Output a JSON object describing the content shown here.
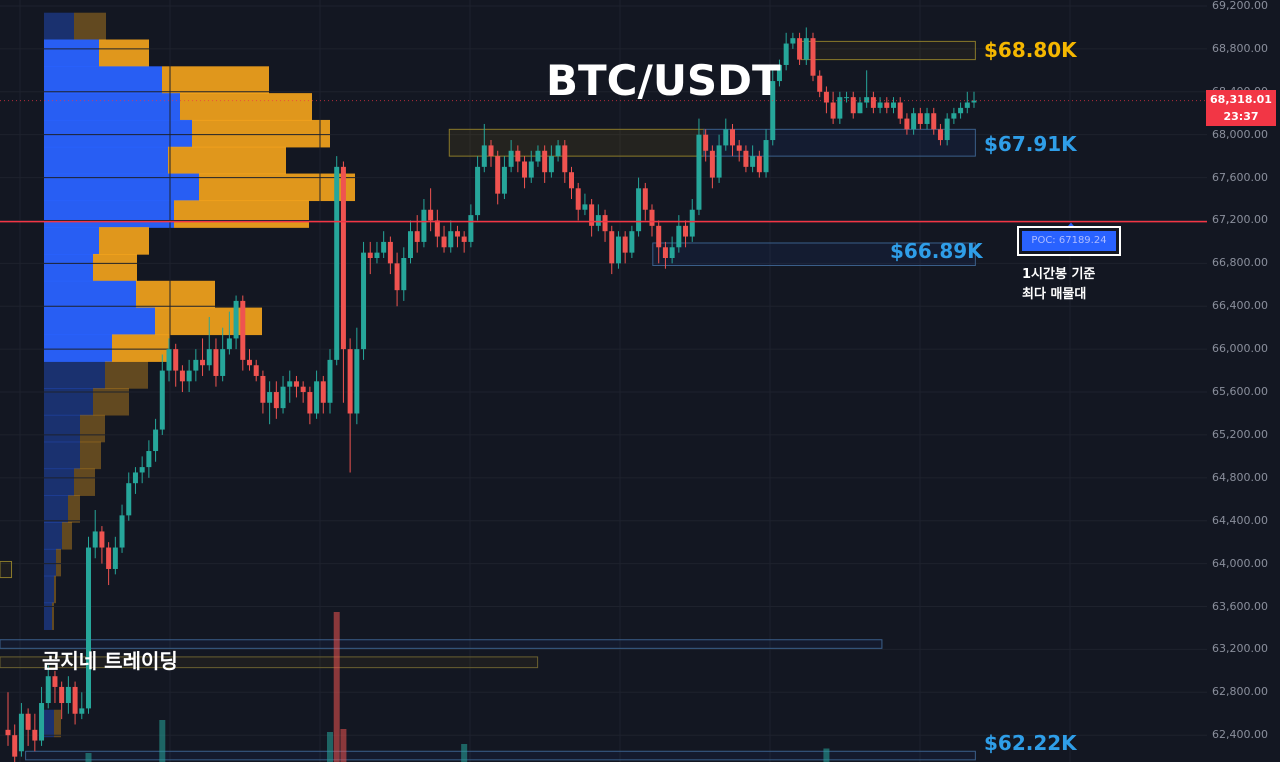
{
  "chart_data": {
    "type": "candlestick",
    "title": "BTC/USDT",
    "watermark": "곰지네 트레이딩",
    "current_price": 68318.01,
    "current_price_label": "68,318.01",
    "countdown": "23:37",
    "ylim": [
      62150,
      69200
    ],
    "y_ticks": [
      62400,
      62800,
      63200,
      63600,
      64000,
      64400,
      64800,
      65200,
      65600,
      66000,
      66400,
      66800,
      67200,
      67600,
      68000,
      68400,
      68800,
      69200
    ],
    "y_tick_labels": [
      "62,400.00",
      "62,800.00",
      "63,200.00",
      "63,600.00",
      "64,000.00",
      "64,400.00",
      "64,800.00",
      "65,200.00",
      "65,600.00",
      "66,000.00",
      "66,400.00",
      "66,800.00",
      "67,200.00",
      "67,600.00",
      "68,000.00",
      "68,400.00",
      "68,800.00",
      "69,200.00"
    ],
    "levels": [
      {
        "label": "$68.80K",
        "value": 68800,
        "color": "#f5b700"
      },
      {
        "label": "$67.91K",
        "value": 67910,
        "color": "#2f9ee8"
      },
      {
        "label": "$66.89K",
        "value": 66890,
        "color": "#2f9ee8"
      },
      {
        "label": "$62.22K",
        "value": 62220,
        "color": "#2f9ee8"
      }
    ],
    "poc": {
      "label": "POC: 67189.24",
      "value": 67189.24,
      "note_line1": "1시간봉 기준",
      "note_line2": "최다 매물대"
    },
    "colors": {
      "up": "#26a69a",
      "down": "#ef5350",
      "poc_line": "#f23645",
      "profile_up": "#2962ff",
      "profile_down": "#f7a51c"
    },
    "grid": true,
    "candles": [
      [
        62450,
        62400,
        62800,
        62300
      ],
      [
        62400,
        62200,
        62500,
        62150
      ],
      [
        62250,
        62600,
        62700,
        62200
      ],
      [
        62600,
        62450,
        62650,
        62300
      ],
      [
        62450,
        62350,
        62600,
        62250
      ],
      [
        62350,
        62700,
        62850,
        62300
      ],
      [
        62700,
        62950,
        63050,
        62650
      ],
      [
        62950,
        62850,
        63000,
        62700
      ],
      [
        62850,
        62700,
        62900,
        62550
      ],
      [
        62700,
        62850,
        62950,
        62600
      ],
      [
        62850,
        62600,
        62900,
        62500
      ],
      [
        62600,
        62650,
        62800,
        62550
      ],
      [
        62650,
        64150,
        64250,
        62600
      ],
      [
        64150,
        64300,
        64500,
        64050
      ],
      [
        64300,
        64150,
        64350,
        64000
      ],
      [
        64150,
        63950,
        64200,
        63800
      ],
      [
        63950,
        64150,
        64250,
        63900
      ],
      [
        64150,
        64450,
        64550,
        64100
      ],
      [
        64450,
        64750,
        64850,
        64400
      ],
      [
        64750,
        64850,
        64900,
        64650
      ],
      [
        64850,
        64900,
        65000,
        64750
      ],
      [
        64900,
        65050,
        65150,
        64800
      ],
      [
        65050,
        65250,
        65350,
        64950
      ],
      [
        65250,
        65800,
        65950,
        65200
      ],
      [
        65800,
        66000,
        66100,
        65700
      ],
      [
        66000,
        65800,
        66050,
        65650
      ],
      [
        65800,
        65700,
        65850,
        65600
      ],
      [
        65700,
        65800,
        65900,
        65600
      ],
      [
        65800,
        65900,
        66000,
        65700
      ],
      [
        65900,
        65850,
        66100,
        65750
      ],
      [
        65850,
        66000,
        66300,
        65800
      ],
      [
        66000,
        65750,
        66100,
        65650
      ],
      [
        65750,
        66000,
        66200,
        65700
      ],
      [
        66000,
        66100,
        66350,
        65950
      ],
      [
        66100,
        66450,
        66500,
        66000
      ],
      [
        66450,
        65900,
        66500,
        65800
      ],
      [
        65900,
        65850,
        66000,
        65800
      ],
      [
        65850,
        65750,
        65900,
        65700
      ],
      [
        65750,
        65500,
        65800,
        65400
      ],
      [
        65500,
        65600,
        65700,
        65300
      ],
      [
        65600,
        65450,
        65700,
        65350
      ],
      [
        65450,
        65650,
        65750,
        65400
      ],
      [
        65650,
        65700,
        65800,
        65500
      ],
      [
        65700,
        65650,
        65750,
        65550
      ],
      [
        65650,
        65600,
        65700,
        65500
      ],
      [
        65600,
        65400,
        65650,
        65300
      ],
      [
        65400,
        65700,
        65800,
        65350
      ],
      [
        65700,
        65500,
        65750,
        65400
      ],
      [
        65500,
        65900,
        66000,
        65400
      ],
      [
        65900,
        67700,
        67800,
        65850
      ],
      [
        67700,
        66000,
        67750,
        65500
      ],
      [
        66000,
        65400,
        66100,
        64850
      ],
      [
        65400,
        66000,
        66200,
        65300
      ],
      [
        66000,
        66900,
        67000,
        65900
      ],
      [
        66900,
        66850,
        67000,
        66700
      ],
      [
        66850,
        66900,
        67000,
        66800
      ],
      [
        66900,
        67000,
        67100,
        66850
      ],
      [
        67000,
        66800,
        67050,
        66700
      ],
      [
        66800,
        66550,
        66900,
        66400
      ],
      [
        66550,
        66850,
        66950,
        66450
      ],
      [
        66850,
        67100,
        67200,
        66800
      ],
      [
        67100,
        67000,
        67250,
        66900
      ],
      [
        67000,
        67300,
        67400,
        66950
      ],
      [
        67300,
        67200,
        67500,
        67100
      ],
      [
        67200,
        67050,
        67300,
        66950
      ],
      [
        67050,
        66950,
        67150,
        66900
      ],
      [
        66950,
        67100,
        67200,
        66900
      ],
      [
        67100,
        67050,
        67150,
        66950
      ],
      [
        67050,
        67000,
        67100,
        66900
      ],
      [
        67000,
        67250,
        67350,
        66950
      ],
      [
        67250,
        67700,
        67800,
        67200
      ],
      [
        67700,
        67900,
        68100,
        67650
      ],
      [
        67900,
        67800,
        67950,
        67700
      ],
      [
        67800,
        67450,
        67850,
        67350
      ],
      [
        67450,
        67700,
        67800,
        67400
      ],
      [
        67700,
        67850,
        67950,
        67650
      ],
      [
        67850,
        67750,
        67900,
        67650
      ],
      [
        67750,
        67600,
        67800,
        67500
      ],
      [
        67600,
        67750,
        67850,
        67550
      ],
      [
        67750,
        67850,
        67900,
        67700
      ],
      [
        67850,
        67650,
        67900,
        67550
      ],
      [
        67650,
        67800,
        67900,
        67600
      ],
      [
        67800,
        67900,
        67950,
        67750
      ],
      [
        67900,
        67650,
        67950,
        67550
      ],
      [
        67650,
        67500,
        67700,
        67400
      ],
      [
        67500,
        67300,
        67550,
        67200
      ],
      [
        67300,
        67350,
        67450,
        67250
      ],
      [
        67350,
        67150,
        67400,
        67050
      ],
      [
        67150,
        67250,
        67350,
        67100
      ],
      [
        67250,
        67100,
        67300,
        67000
      ],
      [
        67100,
        66800,
        67150,
        66700
      ],
      [
        66800,
        67050,
        67100,
        66750
      ],
      [
        67050,
        66900,
        67100,
        66800
      ],
      [
        66900,
        67100,
        67150,
        66850
      ],
      [
        67100,
        67500,
        67600,
        67050
      ],
      [
        67500,
        67300,
        67550,
        67200
      ],
      [
        67300,
        67150,
        67350,
        67050
      ],
      [
        67150,
        66950,
        67200,
        66800
      ],
      [
        66950,
        66850,
        67000,
        66750
      ],
      [
        66850,
        66950,
        67050,
        66800
      ],
      [
        66950,
        67150,
        67250,
        66900
      ],
      [
        67150,
        67050,
        67200,
        66950
      ],
      [
        67050,
        67300,
        67400,
        67000
      ],
      [
        67300,
        68000,
        68150,
        67250
      ],
      [
        68000,
        67850,
        68050,
        67750
      ],
      [
        67850,
        67600,
        67900,
        67500
      ],
      [
        67600,
        67900,
        68000,
        67550
      ],
      [
        67900,
        68050,
        68150,
        67850
      ],
      [
        68050,
        67900,
        68100,
        67800
      ],
      [
        67900,
        67850,
        67950,
        67750
      ],
      [
        67850,
        67700,
        67900,
        67650
      ],
      [
        67700,
        67800,
        67900,
        67650
      ],
      [
        67800,
        67650,
        67850,
        67600
      ],
      [
        67650,
        67950,
        68050,
        67600
      ],
      [
        67950,
        68500,
        68600,
        67900
      ],
      [
        68500,
        68650,
        68700,
        68450
      ],
      [
        68650,
        68850,
        68950,
        68600
      ],
      [
        68850,
        68900,
        68950,
        68800
      ],
      [
        68900,
        68700,
        68950,
        68650
      ],
      [
        68700,
        68900,
        69000,
        68650
      ],
      [
        68900,
        68550,
        68950,
        68500
      ],
      [
        68550,
        68400,
        68600,
        68350
      ],
      [
        68400,
        68300,
        68450,
        68200
      ],
      [
        68300,
        68150,
        68400,
        68100
      ],
      [
        68150,
        68350,
        68400,
        68100
      ],
      [
        68350,
        68350,
        68400,
        68300
      ],
      [
        68350,
        68200,
        68400,
        68150
      ],
      [
        68200,
        68300,
        68350,
        68200
      ],
      [
        68300,
        68350,
        68600,
        68250
      ],
      [
        68350,
        68250,
        68400,
        68200
      ],
      [
        68250,
        68300,
        68350,
        68200
      ],
      [
        68300,
        68250,
        68350,
        68200
      ],
      [
        68250,
        68300,
        68350,
        68200
      ],
      [
        68300,
        68150,
        68350,
        68100
      ],
      [
        68150,
        68050,
        68200,
        68000
      ],
      [
        68050,
        68200,
        68250,
        68000
      ],
      [
        68200,
        68100,
        68250,
        68050
      ],
      [
        68100,
        68200,
        68250,
        68050
      ],
      [
        68200,
        68050,
        68250,
        68000
      ],
      [
        68050,
        67950,
        68100,
        67900
      ],
      [
        67950,
        68150,
        68200,
        67900
      ],
      [
        68150,
        68200,
        68250,
        68100
      ],
      [
        68200,
        68250,
        68300,
        68150
      ],
      [
        68250,
        68300,
        68400,
        68200
      ],
      [
        68300,
        68318,
        68400,
        68250
      ]
    ],
    "volume_profile": [
      {
        "price": 69000,
        "up": 0.3,
        "down": 0.32
      },
      {
        "price": 68750,
        "up": 0.55,
        "down": 0.5
      },
      {
        "price": 68500,
        "up": 1.18,
        "down": 1.07
      },
      {
        "price": 68250,
        "up": 1.36,
        "down": 1.32
      },
      {
        "price": 68000,
        "up": 1.48,
        "down": 1.38
      },
      {
        "price": 67750,
        "up": 1.24,
        "down": 1.18
      },
      {
        "price": 67500,
        "up": 1.55,
        "down": 1.56
      },
      {
        "price": 67250,
        "up": 1.3,
        "down": 1.35
      },
      {
        "price": 67000,
        "up": 0.55,
        "down": 0.5
      },
      {
        "price": 66750,
        "up": 0.49,
        "down": 0.44
      },
      {
        "price": 66500,
        "up": 0.92,
        "down": 0.79
      },
      {
        "price": 66250,
        "up": 1.11,
        "down": 1.07
      },
      {
        "price": 66000,
        "up": 0.68,
        "down": 0.58
      },
      {
        "price": 65750,
        "up": 0.61,
        "down": 0.43
      },
      {
        "price": 65500,
        "up": 0.49,
        "down": 0.36
      },
      {
        "price": 65250,
        "up": 0.36,
        "down": 0.25
      },
      {
        "price": 65000,
        "up": 0.36,
        "down": 0.21
      },
      {
        "price": 64750,
        "up": 0.3,
        "down": 0.21
      },
      {
        "price": 64500,
        "up": 0.24,
        "down": 0.12
      },
      {
        "price": 64250,
        "up": 0.18,
        "down": 0.1
      },
      {
        "price": 64000,
        "up": 0.12,
        "down": 0.05
      },
      {
        "price": 63750,
        "up": 0.1,
        "down": 0.02
      },
      {
        "price": 63500,
        "up": 0.08,
        "down": 0.02
      },
      {
        "price": 62500,
        "up": 0.1,
        "down": 0.07
      }
    ],
    "zones": [
      {
        "name": "zone-68-80k",
        "x0": 0.626,
        "x1": 0.762,
        "y0": 68700,
        "y1": 68870,
        "stroke": "#8a7a2a",
        "fill": "rgba(245,183,0,0.05)"
      },
      {
        "name": "zone-67-91k-a",
        "x0": 0.351,
        "x1": 0.55,
        "y0": 67800,
        "y1": 68050,
        "stroke": "#8a7a2a",
        "fill": "rgba(245,183,0,0.08)"
      },
      {
        "name": "zone-67-91k-b",
        "x0": 0.55,
        "x1": 0.762,
        "y0": 67800,
        "y1": 68050,
        "stroke": "#3a5f8a",
        "fill": "rgba(41,98,255,0.07)"
      },
      {
        "name": "zone-66-89k",
        "x0": 0.51,
        "x1": 0.762,
        "y0": 66780,
        "y1": 66990,
        "stroke": "#3a5f8a",
        "fill": "rgba(41,98,255,0.07)"
      },
      {
        "name": "zone-63-2k",
        "x0": 0.0,
        "x1": 0.689,
        "y0": 63210,
        "y1": 63290,
        "stroke": "#3a5f8a",
        "fill": "rgba(41,98,255,0.05)"
      },
      {
        "name": "zone-63-1k",
        "x0": 0.0,
        "x1": 0.42,
        "y0": 63030,
        "y1": 63130,
        "stroke": "#6a6030",
        "fill": "rgba(245,183,0,0.05)"
      },
      {
        "name": "zone-62-22k",
        "x0": 0.02,
        "x1": 0.762,
        "y0": 62170,
        "y1": 62250,
        "stroke": "#3a5f8a",
        "fill": "rgba(41,98,255,0.05)"
      },
      {
        "name": "zone-63-9k",
        "x0": 0.0,
        "x1": 0.009,
        "y0": 63870,
        "y1": 64020,
        "stroke": "#8a7a2a",
        "fill": "rgba(245,183,0,0.05)"
      }
    ],
    "volumes": [
      {
        "i": 49,
        "value": 1.0,
        "color": "#ef5350"
      },
      {
        "i": 50,
        "value": 0.22,
        "color": "#ef5350"
      },
      {
        "i": 48,
        "value": 0.2,
        "color": "#26a69a"
      },
      {
        "i": 23,
        "value": 0.28,
        "color": "#26a69a"
      },
      {
        "i": 68,
        "value": 0.12,
        "color": "#26a69a"
      },
      {
        "i": 122,
        "value": 0.09,
        "color": "#26a69a"
      },
      {
        "i": 12,
        "value": 0.06,
        "color": "#26a69a"
      }
    ]
  }
}
